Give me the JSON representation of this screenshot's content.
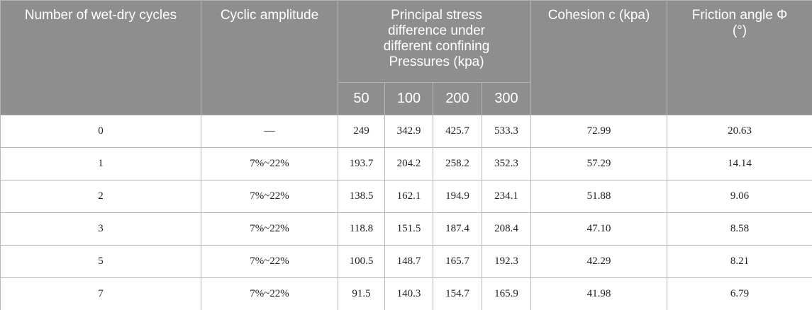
{
  "headers": {
    "cycles": "Number of wet-dry cycles",
    "amplitude": "Cyclic amplitude",
    "stress_group": "Principal stress difference under different confining Pressures (kpa)",
    "pressures": [
      "50",
      "100",
      "200",
      "300"
    ],
    "cohesion": "Cohesion c (kpa)",
    "friction": "Friction angle Φ (°)"
  },
  "rows": [
    {
      "cycles": "0",
      "amplitude": "—",
      "p50": "249",
      "p100": "342.9",
      "p200": "425.7",
      "p300": "533.3",
      "cohesion": "72.99",
      "friction": "20.63"
    },
    {
      "cycles": "1",
      "amplitude": "7%~22%",
      "p50": "193.7",
      "p100": "204.2",
      "p200": "258.2",
      "p300": "352.3",
      "cohesion": "57.29",
      "friction": "14.14"
    },
    {
      "cycles": "2",
      "amplitude": "7%~22%",
      "p50": "138.5",
      "p100": "162.1",
      "p200": "194.9",
      "p300": "234.1",
      "cohesion": "51.88",
      "friction": "9.06"
    },
    {
      "cycles": "3",
      "amplitude": "7%~22%",
      "p50": "118.8",
      "p100": "151.5",
      "p200": "187.4",
      "p300": "208.4",
      "cohesion": "47.10",
      "friction": "8.58"
    },
    {
      "cycles": "5",
      "amplitude": "7%~22%",
      "p50": "100.5",
      "p100": "148.7",
      "p200": "165.7",
      "p300": "192.3",
      "cohesion": "42.29",
      "friction": "8.21"
    },
    {
      "cycles": "7",
      "amplitude": "7%~22%",
      "p50": "91.5",
      "p100": "140.3",
      "p200": "154.7",
      "p300": "165.9",
      "cohesion": "41.98",
      "friction": "6.79"
    }
  ]
}
